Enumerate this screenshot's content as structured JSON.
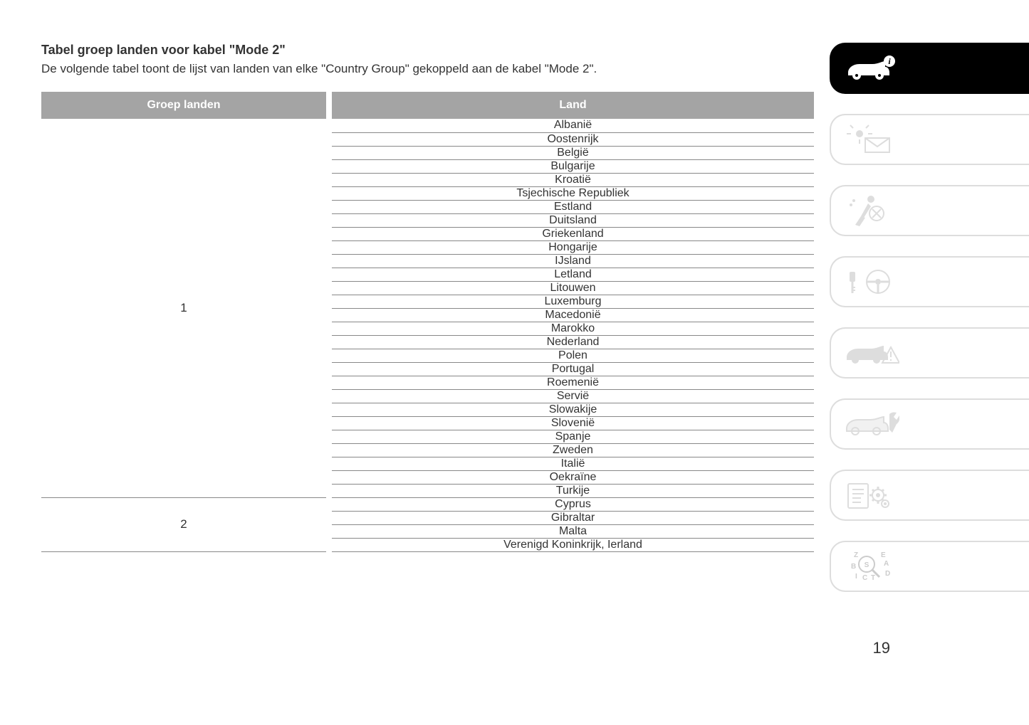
{
  "title": "Tabel groep landen voor kabel \"Mode 2\"",
  "subtitle": "De volgende tabel toont de lijst van landen van elke \"Country Group\" gekoppeld aan de kabel \"Mode 2\".",
  "table": {
    "header_group": "Groep landen",
    "header_country": "Land",
    "header_bg": "#a4a4a4",
    "header_fg": "#ffffff",
    "border_color": "#888888",
    "groups": [
      {
        "label": "1",
        "countries": [
          "Albanië",
          "Oostenrijk",
          "België",
          "Bulgarije",
          "Kroatië",
          "Tsjechische Republiek",
          "Estland",
          "Duitsland",
          "Griekenland",
          "Hongarije",
          "IJsland",
          "Letland",
          "Litouwen",
          "Luxemburg",
          "Macedonië",
          "Marokko",
          "Nederland",
          "Polen",
          "Portugal",
          "Roemenië",
          "Servië",
          "Slowakije",
          "Slovenië",
          "Spanje",
          "Zweden",
          "Italië",
          "Oekraïne",
          "Turkije"
        ]
      },
      {
        "label": "2",
        "countries": [
          "Cyprus",
          "Gibraltar",
          "Malta",
          "Verenigd Koninkrijk, Ierland"
        ]
      }
    ]
  },
  "page_number": "19",
  "tabs": [
    {
      "name": "vehicle-info-icon",
      "active": true
    },
    {
      "name": "dashboard-lights-icon",
      "active": false
    },
    {
      "name": "safety-icon",
      "active": false
    },
    {
      "name": "start-drive-icon",
      "active": false
    },
    {
      "name": "emergency-icon",
      "active": false
    },
    {
      "name": "maintenance-icon",
      "active": false
    },
    {
      "name": "service-schedule-icon",
      "active": false
    },
    {
      "name": "index-icon",
      "active": false
    }
  ],
  "colors": {
    "text": "#333333",
    "inactive_tab": "#dddddd",
    "active_tab_bg": "#000000",
    "active_tab_fg": "#ffffff"
  }
}
